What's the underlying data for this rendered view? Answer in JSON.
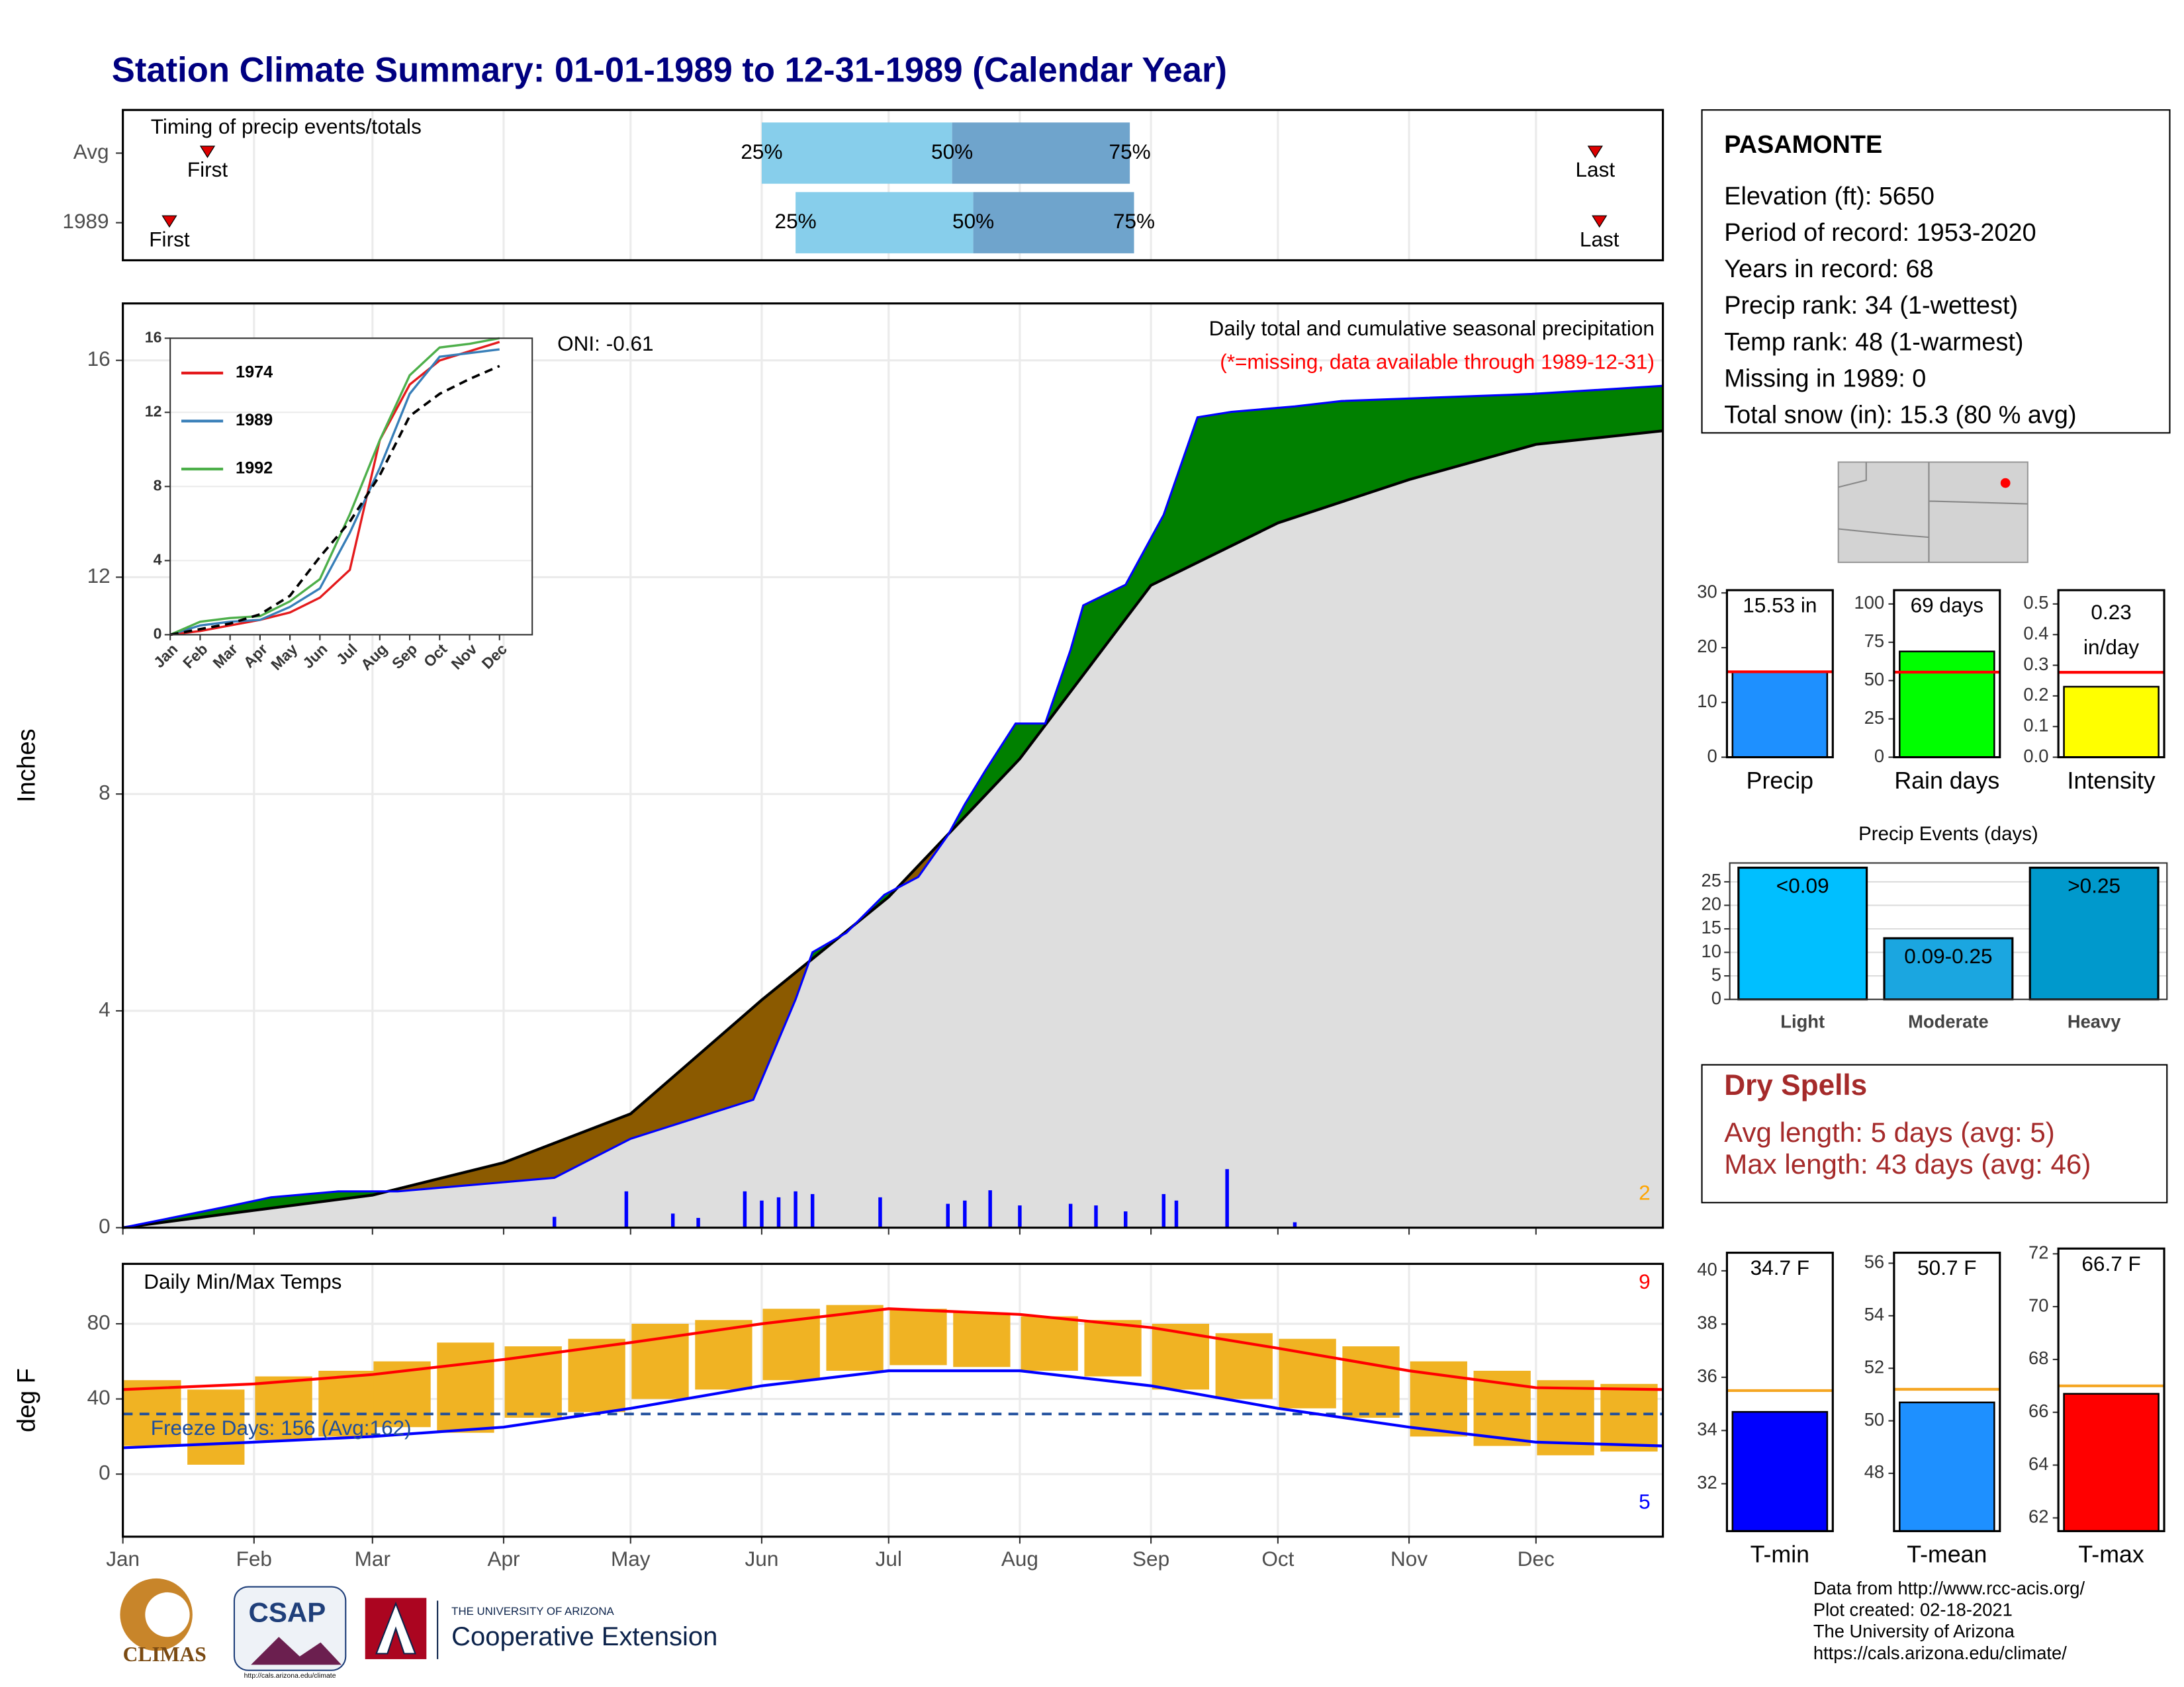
{
  "title": "Station Climate Summary: 01-01-1989 to 12-31-1989 (Calendar Year)",
  "station": {
    "name": "PASAMONTE",
    "lines": [
      "Elevation (ft): 5650",
      "Period of record: 1953-2020",
      "Years in record: 68",
      "Precip rank: 34 (1-wettest)",
      "Temp rank: 48 (1-warmest)",
      "Missing in 1989: 0",
      "Total snow (in): 15.3 (80 % avg)"
    ]
  },
  "dry_spells": {
    "title": "Dry Spells",
    "lines": [
      "Avg length: 5 days (avg: 5)",
      "Max length: 43 days (avg: 46)"
    ]
  },
  "logos": {
    "climas": "CLIMAS",
    "csap": "CSAP",
    "csap_url": "http://cals.arizona.edu/climate",
    "ua": "THE UNIVERSITY OF ARIZONA",
    "ce": "Cooperative Extension"
  },
  "credits": [
    "Data from http://www.rcc-acis.org/",
    "Plot created: 02-18-2021",
    "The University of Arizona",
    "https://cals.arizona.edu/climate/"
  ],
  "chart_data": [
    {
      "type": "timing",
      "title": "Timing of precip events/totals",
      "categories": [
        "Avg",
        "1989"
      ],
      "first": [
        21,
        12
      ],
      "first_label": "First",
      "last": [
        349,
        350
      ],
      "last_label": "Last",
      "quartiles": [
        [
          152,
          197,
          239
        ],
        [
          160,
          202,
          240
        ]
      ],
      "quartile_labels": [
        "25%",
        "50%",
        "75%"
      ],
      "colors": [
        "#87ceeb",
        "#6fa4cc"
      ],
      "marker_color": "#dd0000",
      "xlim": [
        1,
        365
      ],
      "xticks": [
        1,
        32,
        60,
        91,
        121,
        152,
        182,
        213,
        244,
        274,
        305,
        335
      ]
    },
    {
      "type": "cumulative",
      "title": "Daily total and cumulative seasonal precipitation",
      "subtitle": "(*=missing, data available through 1989-12-31)",
      "annotation": "ONI: -0.61",
      "extreme_count": 2,
      "y_label": "Inches",
      "xlim": [
        1,
        365
      ],
      "xticks": [
        1,
        32,
        60,
        91,
        121,
        152,
        182,
        213,
        244,
        274,
        305,
        335
      ],
      "ylim": [
        0,
        17.05
      ],
      "yticks": [
        0,
        4,
        8,
        12,
        16
      ],
      "observed": {
        "color": "#0000ff",
        "above_color": "#008000",
        "below_color": "#8b5a00",
        "x": [
          1,
          27,
          36,
          52,
          66,
          103,
          121,
          150,
          160,
          164,
          172,
          181,
          189,
          196,
          200,
          205,
          212,
          219,
          225,
          228,
          238,
          247,
          255,
          263,
          278,
          289,
          334,
          365
        ],
        "values": [
          0,
          0.41,
          0.56,
          0.67,
          0.67,
          0.92,
          1.64,
          2.36,
          4.21,
          5.08,
          5.44,
          6.14,
          6.47,
          7.24,
          7.81,
          8.45,
          9.3,
          9.3,
          10.66,
          11.48,
          11.86,
          13.15,
          14.95,
          15.05,
          15.15,
          15.25,
          15.38,
          15.53
        ]
      },
      "average": {
        "color": "#000000",
        "fill": "#dedede",
        "x": [
          1,
          30,
          60,
          91,
          121,
          152,
          182,
          213,
          244,
          274,
          305,
          335,
          365
        ],
        "values": [
          0,
          0.3,
          0.6,
          1.2,
          2.1,
          4.2,
          6.1,
          8.65,
          11.85,
          13.0,
          13.8,
          14.45,
          14.7
        ]
      },
      "daily": {
        "color": "#0000ff",
        "x": [
          103,
          120,
          131,
          137,
          148,
          152,
          156,
          160,
          164,
          180,
          196,
          200,
          206,
          213,
          225,
          231,
          238,
          247,
          250,
          262,
          278
        ],
        "values": [
          0.2,
          0.67,
          0.26,
          0.18,
          0.67,
          0.5,
          0.56,
          0.67,
          0.62,
          0.56,
          0.44,
          0.5,
          0.69,
          0.41,
          0.44,
          0.41,
          0.3,
          0.62,
          0.5,
          1.08,
          0.1
        ]
      }
    },
    {
      "type": "line",
      "categories": [
        "Jan",
        "Feb",
        "Mar",
        "Apr",
        "May",
        "Jun",
        "Jul",
        "Aug",
        "Sep",
        "Oct",
        "Nov",
        "Dec"
      ],
      "ylim": [
        0,
        16
      ],
      "yticks": [
        0,
        4,
        8,
        12,
        16
      ],
      "series": [
        {
          "name": "1974",
          "color": "#e41a1c",
          "values": [
            0,
            0.2,
            0.5,
            0.8,
            1.2,
            2.0,
            3.5,
            10.5,
            13.5,
            14.8,
            15.3,
            15.8
          ]
        },
        {
          "name": "1989",
          "color": "#377eb8",
          "values": [
            0,
            0.5,
            0.7,
            0.8,
            1.5,
            2.5,
            5.5,
            9.0,
            13.0,
            15.0,
            15.2,
            15.4
          ]
        },
        {
          "name": "1992",
          "color": "#4daf4a",
          "values": [
            0,
            0.7,
            0.9,
            1.0,
            1.8,
            3.0,
            6.5,
            10.5,
            14.0,
            15.5,
            15.7,
            16.0
          ]
        },
        {
          "color": "#000000",
          "dashed": true,
          "values": [
            0,
            0.3,
            0.6,
            1.1,
            2.1,
            4.2,
            6.1,
            8.6,
            11.8,
            13.0,
            13.8,
            14.5
          ]
        }
      ]
    },
    {
      "type": "temps",
      "title": "Daily Min/Max Temps",
      "y_label": "deg F",
      "annotation": "Freeze Days: 156 (Avg:162)",
      "hot_count": 9,
      "cold_count": 5,
      "freeze_line": 32,
      "xlim": [
        1,
        365
      ],
      "xticks": [
        {
          "value": 1,
          "label": "Jan"
        },
        {
          "value": 32,
          "label": "Feb"
        },
        {
          "value": 60,
          "label": "Mar"
        },
        {
          "value": 91,
          "label": "Apr"
        },
        {
          "value": 121,
          "label": "May"
        },
        {
          "value": 152,
          "label": "Jun"
        },
        {
          "value": 182,
          "label": "Jul"
        },
        {
          "value": 213,
          "label": "Aug"
        },
        {
          "value": 244,
          "label": "Sep"
        },
        {
          "value": 274,
          "label": "Oct"
        },
        {
          "value": 305,
          "label": "Nov"
        },
        {
          "value": 335,
          "label": "Dec"
        }
      ],
      "ylim": [
        -33.3,
        111.9
      ],
      "yticks": [
        0,
        40,
        80
      ],
      "daily": {
        "color": "#f0b323",
        "x": [
          8,
          23,
          39,
          54,
          67,
          82,
          98,
          113,
          128,
          143,
          159,
          174,
          189,
          204,
          220,
          235,
          251,
          266,
          281,
          296,
          312,
          327,
          342,
          357
        ],
        "min": [
          15,
          5,
          18,
          20,
          25,
          22,
          30,
          33,
          40,
          45,
          50,
          55,
          58,
          57,
          55,
          52,
          45,
          40,
          35,
          30,
          20,
          15,
          10,
          12
        ],
        "max": [
          50,
          45,
          52,
          55,
          60,
          70,
          68,
          72,
          80,
          82,
          88,
          90,
          88,
          86,
          84,
          82,
          80,
          75,
          72,
          68,
          60,
          55,
          50,
          48
        ]
      },
      "avg_max": {
        "color": "#ff0000",
        "x": [
          1,
          32,
          60,
          91,
          121,
          152,
          182,
          213,
          244,
          274,
          305,
          335,
          365
        ],
        "values": [
          45,
          48,
          53,
          61,
          70,
          80,
          88,
          85,
          78,
          67,
          55,
          46,
          45
        ]
      },
      "avg_min": {
        "color": "#0000ff",
        "x": [
          1,
          32,
          60,
          91,
          121,
          152,
          182,
          213,
          244,
          274,
          305,
          335,
          365
        ],
        "values": [
          14,
          17,
          20,
          25,
          35,
          47,
          55,
          55,
          47,
          35,
          25,
          17,
          15
        ]
      },
      "freeze_color": "#1f4e9c"
    },
    {
      "type": "bar",
      "categories": [
        "Precip"
      ],
      "values": [
        15.53
      ],
      "value_labels": [
        "15.53 in"
      ],
      "average": 15.6,
      "color": "#1e90ff",
      "avg_color": "#ff0000",
      "ylim": [
        0,
        30.5
      ],
      "yticks": [
        0,
        10,
        20,
        30
      ]
    },
    {
      "type": "bar",
      "categories": [
        "Rain days"
      ],
      "values": [
        69
      ],
      "value_labels": [
        "69 days"
      ],
      "average": 55.5,
      "color": "#00ff00",
      "avg_color": "#ff0000",
      "ylim": [
        0,
        109
      ],
      "yticks": [
        0,
        25,
        50,
        75,
        100
      ]
    },
    {
      "type": "bar",
      "categories": [
        "Intensity"
      ],
      "values": [
        0.23
      ],
      "unit_label": "in/day",
      "average": 0.277,
      "color": "#ffff00",
      "avg_color": "#ff0000",
      "ylim": [
        0,
        0.545
      ],
      "yticks": [
        {
          "value": 0,
          "label": "0.0"
        },
        0.1,
        0.2,
        0.3,
        0.4,
        0.5
      ]
    },
    {
      "type": "events",
      "title": "Precip Events (days)",
      "categories": [
        "Light",
        "Moderate",
        "Heavy"
      ],
      "values": [
        28,
        13,
        28
      ],
      "bin_labels": [
        "<0.09",
        "0.09-0.25",
        ">0.25"
      ],
      "colors": [
        "#00bfff",
        "#1ba6e0",
        "#0099cc"
      ],
      "ylim": [
        0,
        29
      ],
      "yticks": [
        0,
        5,
        10,
        15,
        20,
        25
      ]
    },
    {
      "type": "bar",
      "categories": [
        "T-min"
      ],
      "values": [
        34.7
      ],
      "value_labels": [
        "34.7 F"
      ],
      "average": 35.5,
      "color": "#0000ff",
      "avg_color": "#f5a623",
      "ylim": [
        30.22,
        40.68
      ],
      "yticks": [
        32,
        34,
        36,
        38,
        40
      ]
    },
    {
      "type": "bar",
      "categories": [
        "T-mean"
      ],
      "values": [
        50.7
      ],
      "value_labels": [
        "50.7 F"
      ],
      "average": 51.2,
      "color": "#1e90ff",
      "avg_color": "#f5a623",
      "ylim": [
        45.8,
        56.4
      ],
      "yticks": [
        48,
        50,
        52,
        54,
        56
      ]
    },
    {
      "type": "bar",
      "categories": [
        "T-max"
      ],
      "values": [
        66.7
      ],
      "value_labels": [
        "66.7 F"
      ],
      "average": 67.0,
      "color": "#ff0000",
      "avg_color": "#f5a623",
      "ylim": [
        61.5,
        72.2
      ],
      "yticks": [
        62,
        64,
        66,
        68,
        70,
        72
      ]
    }
  ]
}
